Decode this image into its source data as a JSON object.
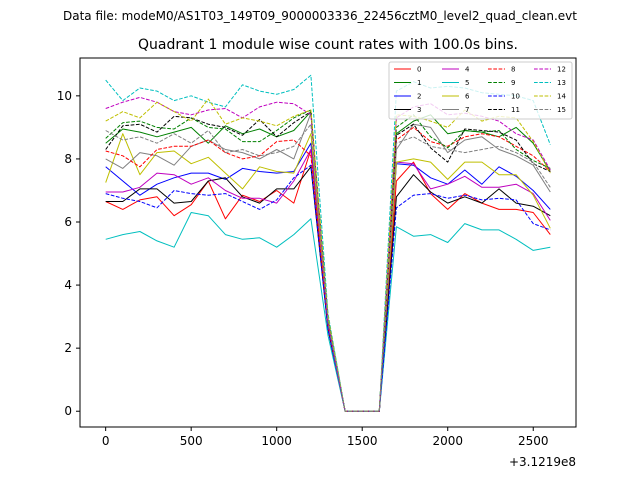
{
  "suptitle": "Data file: modeM0/AS1T03_149T09_9000003336_22456cztM0_level2_quad_clean.evt",
  "chart_data": {
    "type": "line",
    "title": "Quadrant 1 module wise count rates with 100.0s bins.",
    "xlabel": "",
    "ylabel": "",
    "x_offset_label": "+3.1219e8",
    "xlim": [
      -150,
      2750
    ],
    "ylim": [
      -0.5,
      11.2
    ],
    "xticks": [
      0,
      500,
      1000,
      1500,
      2000,
      2500
    ],
    "xtick_labels": [
      "0",
      "500",
      "1000",
      "1500",
      "2000",
      "2500"
    ],
    "yticks": [
      0,
      2,
      4,
      6,
      8,
      10
    ],
    "ytick_labels": [
      "0",
      "2",
      "4",
      "6",
      "8",
      "10"
    ],
    "grid": false,
    "legend_position": "top-right",
    "legend_columns": 4,
    "x": [
      0,
      100,
      200,
      300,
      400,
      500,
      600,
      700,
      800,
      900,
      1000,
      1100,
      1200,
      1300,
      1400,
      1500,
      1600,
      1700,
      1800,
      1900,
      2000,
      2100,
      2200,
      2300,
      2400,
      2500,
      2600
    ],
    "series": [
      {
        "name": "0",
        "color": "#ff0000",
        "dash": "solid",
        "values": [
          6.65,
          6.4,
          6.7,
          6.8,
          6.2,
          6.55,
          7.3,
          6.1,
          6.85,
          6.65,
          7.0,
          6.6,
          8.3,
          2.6,
          0,
          0,
          0,
          7.3,
          7.9,
          6.9,
          6.4,
          6.9,
          6.6,
          6.4,
          6.4,
          6.3,
          5.6
        ]
      },
      {
        "name": "1",
        "color": "#008000",
        "dash": "solid",
        "values": [
          8.5,
          8.95,
          8.85,
          8.7,
          8.85,
          9.0,
          8.5,
          9.05,
          8.8,
          8.95,
          8.7,
          8.9,
          9.5,
          2.9,
          0,
          0,
          0,
          8.8,
          9.2,
          9.4,
          8.8,
          8.9,
          8.85,
          8.7,
          9.0,
          8.5,
          7.6
        ]
      },
      {
        "name": "2",
        "color": "#0000ff",
        "dash": "solid",
        "values": [
          7.75,
          7.3,
          6.85,
          7.2,
          7.4,
          7.55,
          7.55,
          7.35,
          7.7,
          7.6,
          7.55,
          7.6,
          8.5,
          2.7,
          0,
          0,
          0,
          7.85,
          7.8,
          7.4,
          7.2,
          7.65,
          7.2,
          7.75,
          7.45,
          7.0,
          6.4
        ]
      },
      {
        "name": "3",
        "color": "#000000",
        "dash": "solid",
        "values": [
          6.65,
          6.65,
          7.05,
          7.05,
          6.6,
          6.65,
          7.3,
          7.4,
          6.8,
          6.6,
          7.05,
          7.05,
          7.75,
          2.6,
          0,
          0,
          0,
          6.8,
          7.5,
          6.95,
          6.6,
          6.8,
          6.6,
          7.05,
          6.6,
          6.5,
          6.2
        ]
      },
      {
        "name": "4",
        "color": "#bf00bf",
        "dash": "solid",
        "values": [
          6.95,
          6.95,
          7.1,
          7.55,
          7.5,
          7.2,
          7.4,
          7.0,
          6.75,
          6.75,
          6.6,
          7.3,
          8.3,
          2.7,
          0,
          0,
          0,
          7.9,
          7.85,
          7.05,
          7.2,
          7.45,
          7.1,
          7.1,
          7.2,
          6.9,
          6.05
        ]
      },
      {
        "name": "5",
        "color": "#00bfbf",
        "dash": "solid",
        "values": [
          5.45,
          5.6,
          5.7,
          5.4,
          5.2,
          6.3,
          6.2,
          5.6,
          5.45,
          5.5,
          5.2,
          5.6,
          6.1,
          2.4,
          0,
          0,
          0,
          5.85,
          5.55,
          5.6,
          5.35,
          5.95,
          5.75,
          5.75,
          5.45,
          5.1,
          5.2
        ]
      },
      {
        "name": "6",
        "color": "#bfbf00",
        "dash": "solid",
        "values": [
          7.25,
          8.8,
          7.5,
          8.2,
          8.25,
          7.85,
          8.05,
          7.55,
          7.05,
          7.75,
          7.6,
          7.55,
          8.8,
          2.8,
          0,
          0,
          0,
          7.9,
          8.0,
          7.9,
          7.35,
          7.9,
          7.9,
          7.5,
          7.5,
          6.85,
          5.8
        ]
      },
      {
        "name": "7",
        "color": "#808080",
        "dash": "solid",
        "values": [
          8.0,
          7.7,
          8.2,
          8.1,
          7.8,
          8.4,
          8.6,
          8.3,
          8.2,
          8.0,
          8.3,
          8.0,
          9.45,
          2.9,
          0,
          0,
          0,
          8.3,
          9.1,
          9.0,
          8.2,
          8.6,
          8.7,
          8.3,
          8.1,
          7.8,
          6.95
        ]
      },
      {
        "name": "8",
        "color": "#ff0000",
        "dash": "dashed",
        "values": [
          8.25,
          8.1,
          7.75,
          8.3,
          8.4,
          8.4,
          8.6,
          8.2,
          8.0,
          8.1,
          8.55,
          8.6,
          8.1,
          2.7,
          0,
          0,
          0,
          8.6,
          9.0,
          8.55,
          8.4,
          8.7,
          8.8,
          8.7,
          8.4,
          8.1,
          7.6
        ]
      },
      {
        "name": "9",
        "color": "#008000",
        "dash": "dashed",
        "values": [
          8.65,
          9.15,
          9.2,
          9.0,
          8.95,
          9.3,
          9.0,
          8.95,
          8.55,
          8.55,
          8.9,
          9.3,
          9.55,
          2.9,
          0,
          0,
          0,
          9.0,
          9.4,
          8.7,
          8.35,
          8.9,
          8.85,
          8.9,
          8.3,
          7.95,
          7.7
        ]
      },
      {
        "name": "10",
        "color": "#0000ff",
        "dash": "dashed",
        "values": [
          6.9,
          6.75,
          6.65,
          6.45,
          7.0,
          6.9,
          6.85,
          6.9,
          6.65,
          6.4,
          6.7,
          7.4,
          7.8,
          2.6,
          0,
          0,
          0,
          6.45,
          6.85,
          6.9,
          6.75,
          6.85,
          6.7,
          6.75,
          6.7,
          5.95,
          5.75
        ]
      },
      {
        "name": "11",
        "color": "#000000",
        "dash": "dashed",
        "values": [
          8.3,
          9.05,
          9.1,
          8.85,
          9.35,
          9.3,
          9.1,
          9.0,
          8.75,
          9.25,
          8.7,
          9.15,
          9.5,
          2.9,
          0,
          0,
          0,
          8.75,
          9.1,
          8.35,
          7.9,
          8.95,
          8.9,
          8.85,
          8.6,
          7.85,
          7.6
        ]
      },
      {
        "name": "12",
        "color": "#bf00bf",
        "dash": "dashed",
        "values": [
          9.6,
          9.8,
          9.95,
          9.8,
          9.5,
          9.4,
          9.55,
          9.6,
          9.3,
          9.65,
          9.8,
          9.75,
          9.4,
          2.8,
          0,
          0,
          0,
          9.3,
          9.65,
          9.75,
          9.4,
          9.45,
          9.35,
          9.2,
          8.8,
          8.6,
          7.65
        ]
      },
      {
        "name": "13",
        "color": "#00bfbf",
        "dash": "dashed",
        "values": [
          10.5,
          9.85,
          10.25,
          10.15,
          9.85,
          10.0,
          9.8,
          9.65,
          10.35,
          10.15,
          10.05,
          10.2,
          10.65,
          3.1,
          0,
          0,
          0,
          10.15,
          10.45,
          10.25,
          10.3,
          10.25,
          10.1,
          10.05,
          10.0,
          9.85,
          8.45
        ]
      },
      {
        "name": "14",
        "color": "#bfbf00",
        "dash": "dashed",
        "values": [
          9.2,
          9.5,
          9.3,
          9.8,
          9.5,
          9.2,
          9.9,
          9.1,
          9.3,
          9.2,
          9.05,
          9.35,
          9.55,
          3.0,
          0,
          0,
          0,
          9.4,
          9.35,
          9.2,
          9.0,
          9.55,
          9.2,
          9.35,
          9.3,
          8.55,
          7.55
        ]
      },
      {
        "name": "15",
        "color": "#808080",
        "dash": "dashed",
        "values": [
          8.9,
          8.6,
          8.7,
          8.5,
          8.8,
          8.5,
          8.9,
          8.2,
          8.3,
          8.1,
          8.2,
          8.4,
          9.1,
          2.8,
          0,
          0,
          0,
          8.5,
          8.7,
          8.4,
          8.3,
          8.2,
          8.3,
          8.4,
          8.2,
          7.9,
          7.1
        ]
      }
    ]
  }
}
